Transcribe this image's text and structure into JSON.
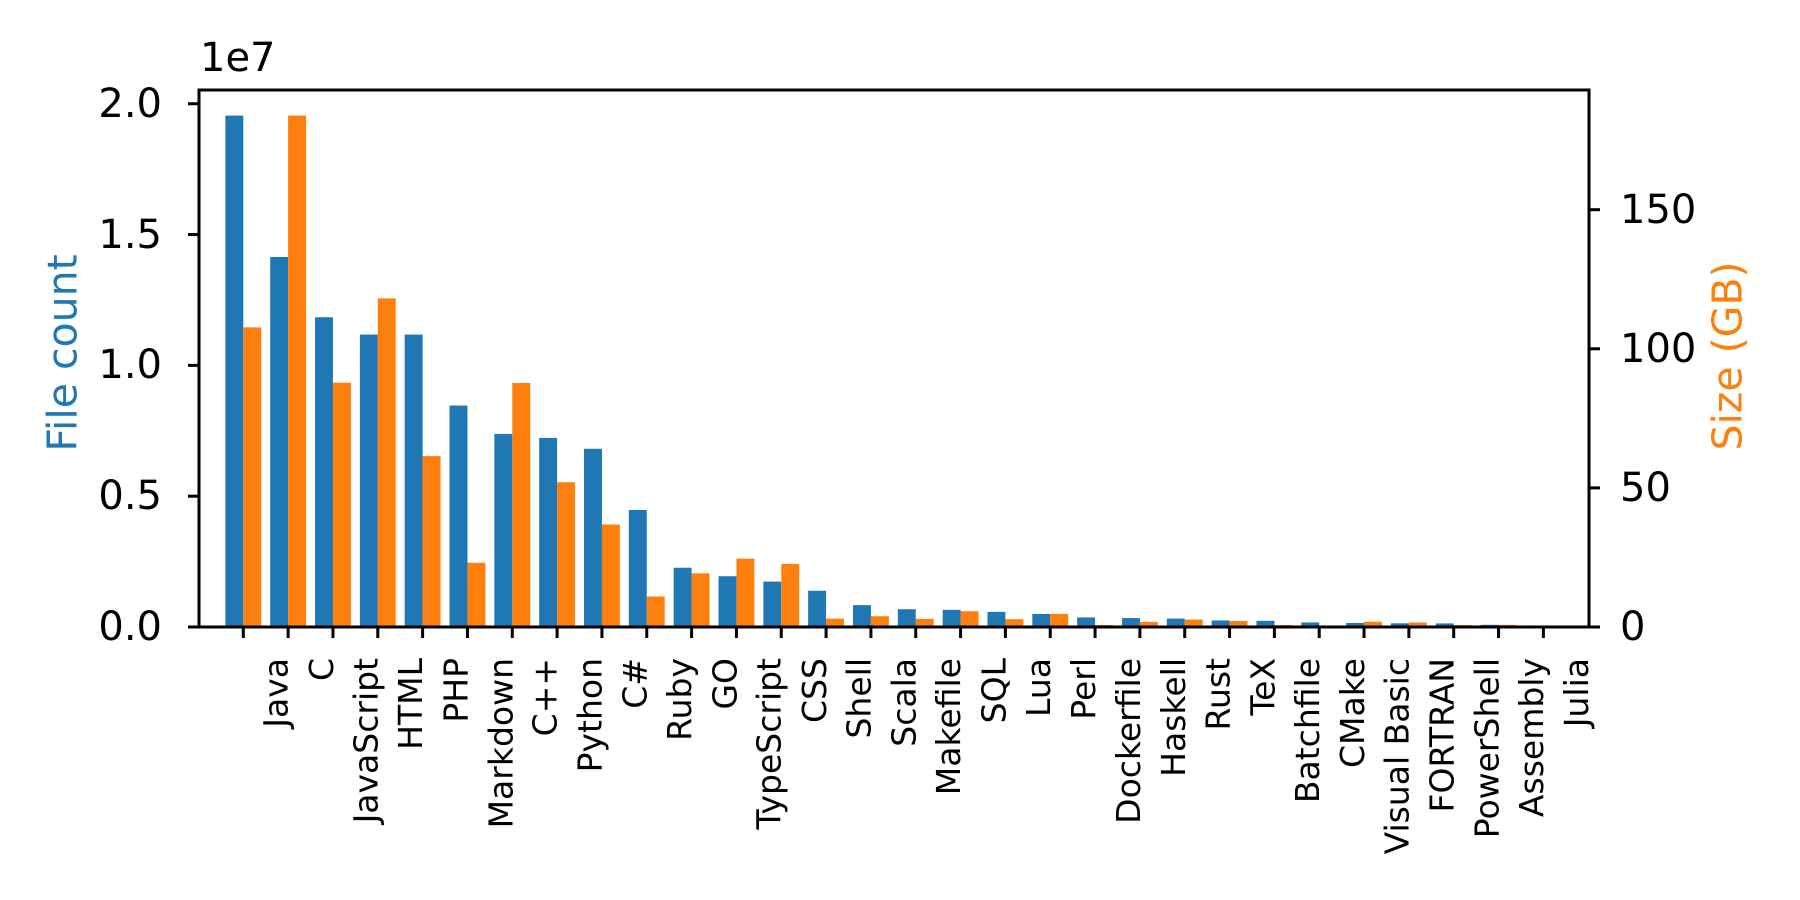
{
  "chart_data": {
    "type": "bar",
    "title": "",
    "categories": [
      "Java",
      "C",
      "JavaScript",
      "HTML",
      "PHP",
      "Markdown",
      "C++",
      "Python",
      "C#",
      "Ruby",
      "GO",
      "TypeScript",
      "CSS",
      "Shell",
      "Scala",
      "Makefile",
      "SQL",
      "Lua",
      "Perl",
      "Dockerfile",
      "Haskell",
      "Rust",
      "TeX",
      "Batchfile",
      "CMake",
      "Visual Basic",
      "FORTRAN",
      "PowerShell",
      "Assembly",
      "Julia"
    ],
    "series": [
      {
        "name": "File count",
        "axis": "left",
        "color": "#1f77b4",
        "values": [
          19548190,
          14143113,
          11839883,
          11178557,
          11177610,
          8464626,
          7380520,
          7226626,
          6811652,
          4473331,
          2265436,
          1940406,
          1734406,
          1385648,
          835755,
          679430,
          656671,
          578554,
          497949,
          366505,
          340623,
          322431,
          251015,
          236945,
          175282,
          155652,
          142038,
          136846,
          82905,
          58317
        ]
      },
      {
        "name": "Size (GB)",
        "axis": "right",
        "color": "#ff7f0e",
        "values": [
          107.7,
          183.83,
          87.82,
          118.12,
          61.41,
          23.09,
          87.73,
          52.03,
          36.83,
          10.95,
          19.28,
          24.59,
          22.67,
          3.01,
          3.87,
          2.92,
          5.67,
          2.81,
          4.7,
          0.71,
          1.85,
          2.68,
          2.15,
          0.7,
          0.54,
          1.91,
          1.62,
          0.69,
          0.78,
          0.29
        ]
      }
    ],
    "ylabel_left": "File count",
    "ylabel_right": "Size (GB)",
    "offset_text": "1e7",
    "yticks_left": {
      "values": [
        0,
        5000000,
        10000000,
        15000000,
        20000000
      ],
      "labels": [
        "0.0",
        "0.5",
        "1.0",
        "1.5",
        "2.0"
      ]
    },
    "yticks_right": {
      "values": [
        0,
        50,
        100,
        150
      ],
      "labels": [
        "0",
        "50",
        "100",
        "150"
      ]
    },
    "ylim_left": [
      0,
      20525600
    ],
    "ylim_right": [
      0,
      193.02
    ],
    "bar_width": 0.4,
    "x_tick_rotation": 90,
    "grid": false,
    "legend": "none",
    "colors": {
      "file_count": "#1f77b4",
      "size_gb": "#ff7f0e",
      "axis": "#000000",
      "background": "#ffffff"
    }
  }
}
